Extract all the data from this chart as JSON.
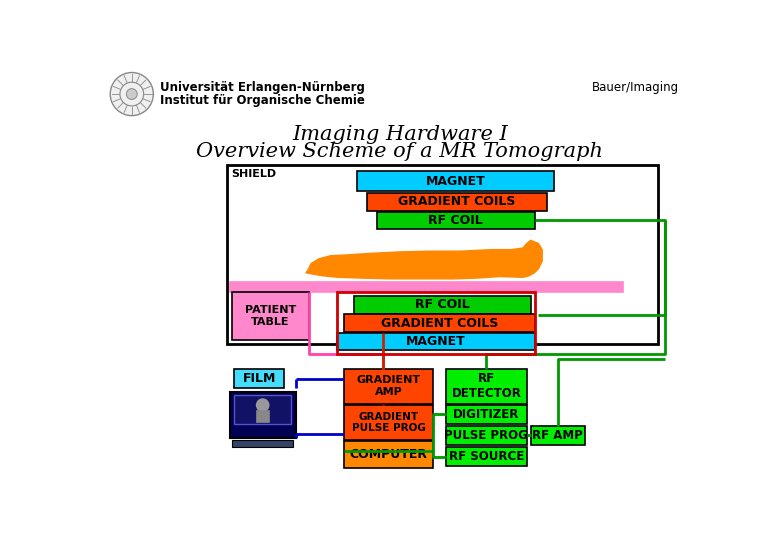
{
  "title_line1": "Imaging Hardware I",
  "title_line2": "Overview Scheme of a MR Tomograph",
  "header_line1": "Universität Erlangen-Nürnberg",
  "header_line2": "Institut für Organische Chemie",
  "header_right": "Bauer/Imaging",
  "bg_color": "#ffffff",
  "cyan": "#00ccff",
  "orange_red": "#ff4400",
  "green": "#00cc00",
  "bright_green": "#00ee00",
  "orange": "#ff8800",
  "pink": "#ff88dd",
  "light_blue": "#44ccff",
  "dark_navy": "#000055"
}
